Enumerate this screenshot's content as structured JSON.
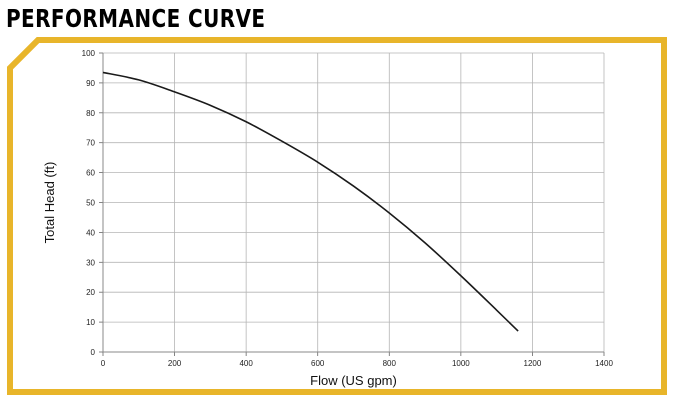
{
  "page": {
    "title": "PERFORMANCE CURVE",
    "accent_color": "#e8b52a"
  },
  "chart_data": {
    "type": "line",
    "title": "",
    "xlabel": "Flow (US gpm)",
    "ylabel": "Total Head (ft)",
    "xlim": [
      0,
      1400
    ],
    "ylim": [
      0,
      100
    ],
    "xticks": [
      0,
      200,
      400,
      600,
      800,
      1000,
      1200,
      1400
    ],
    "yticks": [
      0,
      10,
      20,
      30,
      40,
      50,
      60,
      70,
      80,
      90,
      100
    ],
    "grid": true,
    "line_color": "#1a1a1a",
    "series": [
      {
        "x": [
          0,
          100,
          200,
          300,
          400,
          500,
          600,
          700,
          800,
          900,
          1000,
          1100,
          1160
        ],
        "y": [
          93.5,
          91,
          87,
          82.5,
          77,
          70.5,
          63.5,
          55.5,
          46.5,
          36.5,
          25.5,
          14,
          7
        ]
      }
    ]
  }
}
